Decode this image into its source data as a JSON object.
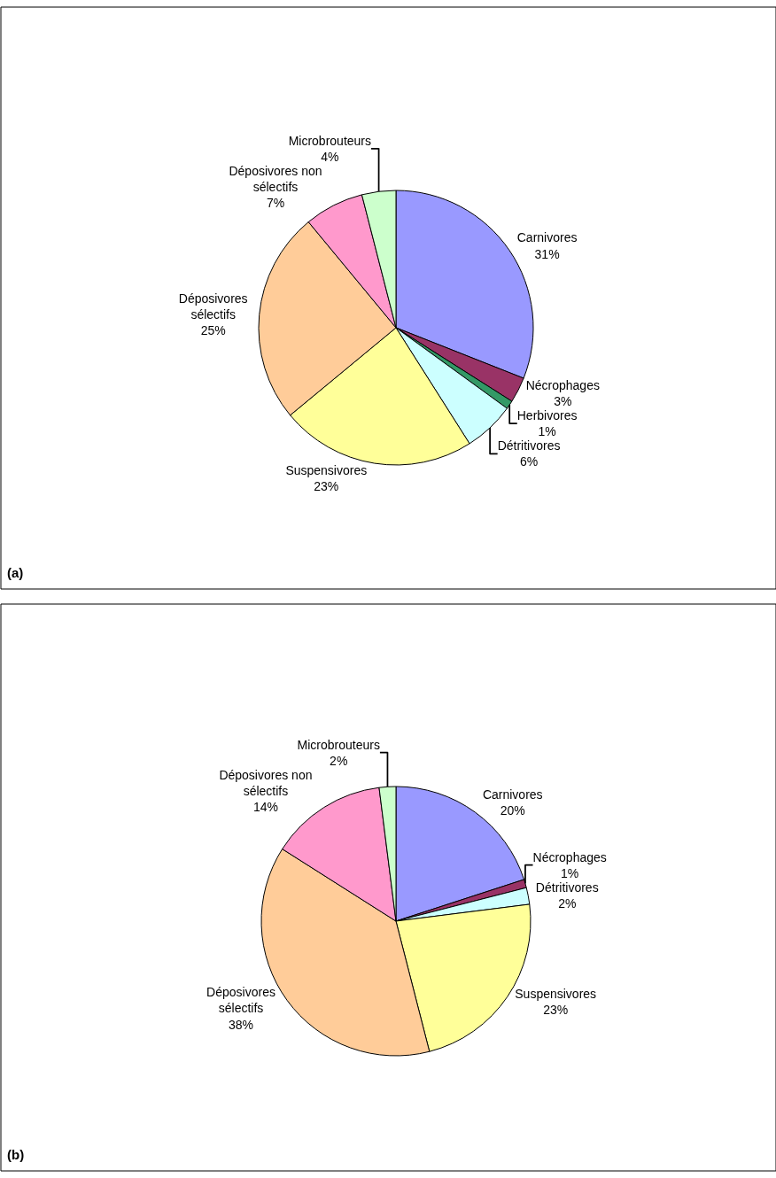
{
  "chart_data": [
    {
      "type": "pie",
      "categories": [
        "Carnivores",
        "Nécrophages",
        "Herbivores",
        "Détritivores",
        "Suspensivores",
        "Déposivores sélectifs",
        "Déposivores non sélectifs",
        "Microbrouteurs"
      ],
      "values": [
        31,
        3,
        1,
        6,
        23,
        25,
        7,
        4
      ],
      "value_labels": [
        "31%",
        "3%",
        "1%",
        "6%",
        "23%",
        "25%",
        "7%",
        "4%"
      ],
      "colors": [
        "#9999ff",
        "#993366",
        "#339966",
        "#ccffff",
        "#ffff99",
        "#ffcc99",
        "#ff99cc",
        "#ccffcc"
      ],
      "annotations": [
        "(a)"
      ]
    },
    {
      "type": "pie",
      "categories": [
        "Carnivores",
        "Nécrophages",
        "Détritivores",
        "Suspensivores",
        "Déposivores sélectifs",
        "Déposivores non sélectifs",
        "Microbrouteurs"
      ],
      "values": [
        20,
        1,
        2,
        23,
        38,
        14,
        2
      ],
      "value_labels": [
        "20%",
        "1%",
        "2%",
        "23%",
        "38%",
        "14%",
        "2%"
      ],
      "colors": [
        "#9999ff",
        "#993366",
        "#ccffff",
        "#ffff99",
        "#ffcc99",
        "#ff99cc",
        "#ccffcc"
      ],
      "annotations": [
        "(b)"
      ]
    }
  ]
}
